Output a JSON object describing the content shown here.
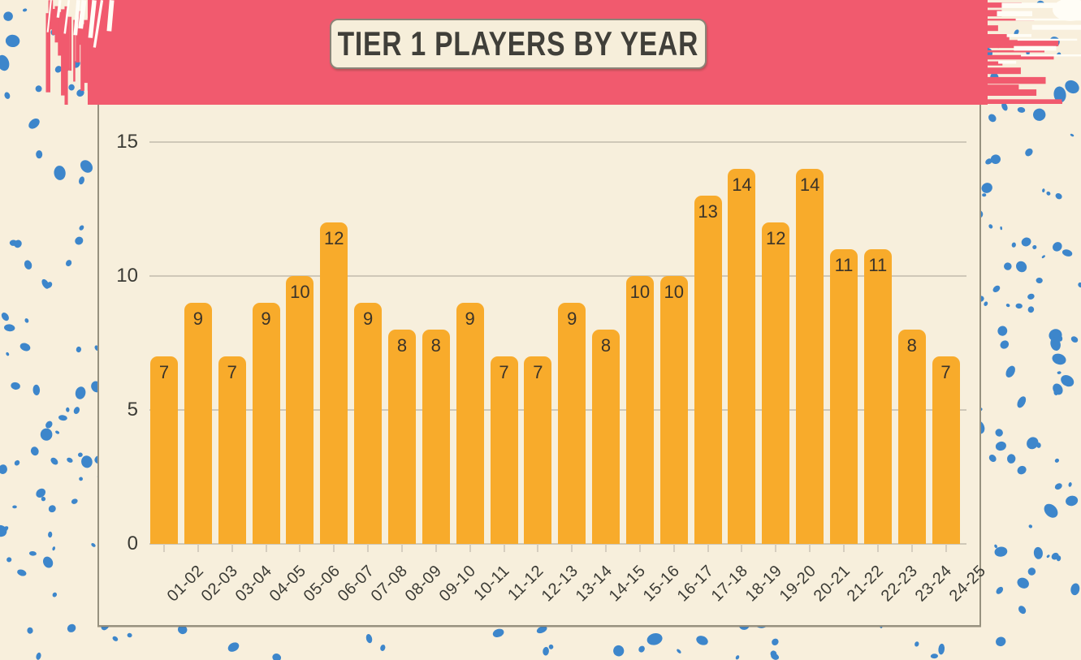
{
  "title_banner": {
    "label": "TIER 1 PLAYERS BY YEAR"
  },
  "chart_data": {
    "type": "bar",
    "title": "TIER 1 PLAYERS BY YEAR",
    "categories": [
      "01-02",
      "02-03",
      "03-04",
      "04-05",
      "05-06",
      "06-07",
      "07-08",
      "08-09",
      "09-10",
      "10-11",
      "11-12",
      "12-13",
      "13-14",
      "14-15",
      "15-16",
      "16-17",
      "17-18",
      "18-19",
      "19-20",
      "20-21",
      "21-22",
      "22-23",
      "23-24",
      "24-25"
    ],
    "values": [
      7,
      9,
      7,
      9,
      10,
      12,
      9,
      8,
      8,
      9,
      7,
      7,
      9,
      8,
      10,
      10,
      13,
      14,
      12,
      14,
      11,
      11,
      8,
      7
    ],
    "xlabel": "",
    "ylabel": "",
    "ylim": [
      0,
      15
    ],
    "yticks": [
      0,
      5,
      10,
      15
    ],
    "grid": true,
    "legend": false,
    "bar_labels": "inside-top"
  },
  "colors": {
    "background": "#F8EFDC",
    "panel": "#F7EFDC",
    "panel_border": "#97917F",
    "banner_pink": "#F15A6E",
    "torn_white": "#FFFDF6",
    "bar": "#F8AB2B",
    "bar_label": "#3A3329",
    "axis_text": "#3B3B35",
    "gridline": "#CFC8B8",
    "speckle_blue": "#3D86CB",
    "title_text": "#403F39",
    "title_box_bg": "#F6EEDA",
    "title_box_border": "#8B8478"
  }
}
